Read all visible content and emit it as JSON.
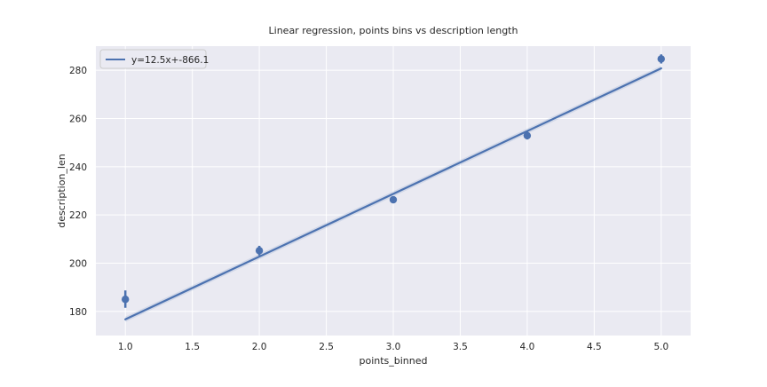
{
  "chart_data": {
    "type": "scatter",
    "title": "Linear regression, points bins vs description length",
    "xlabel": "points_binned",
    "ylabel": "description_len",
    "xlim": [
      0.78,
      5.22
    ],
    "ylim": [
      170,
      290
    ],
    "x_ticks": [
      1.0,
      1.5,
      2.0,
      2.5,
      3.0,
      3.5,
      4.0,
      4.5,
      5.0
    ],
    "x_tick_labels": [
      "1.0",
      "1.5",
      "2.0",
      "2.5",
      "3.0",
      "3.5",
      "4.0",
      "4.5",
      "5.0"
    ],
    "y_ticks": [
      180,
      200,
      220,
      240,
      260,
      280
    ],
    "y_tick_labels": [
      "180",
      "200",
      "220",
      "240",
      "260",
      "280"
    ],
    "grid": true,
    "legend": {
      "position": "top-left",
      "entries": [
        "y=12.5x+-866.1"
      ]
    },
    "colors": {
      "series": "#4C72B0",
      "background": "#EAEAF2",
      "grid": "#FFFFFF"
    },
    "series": [
      {
        "name": "y=12.5x+-866.1",
        "points": [
          {
            "x": 1.0,
            "y": 185.0,
            "err_low": 181.5,
            "err_high": 188.7
          },
          {
            "x": 2.0,
            "y": 205.2,
            "err_low": 203.2,
            "err_high": 207.2
          },
          {
            "x": 3.0,
            "y": 226.3,
            "err_low": 225.2,
            "err_high": 227.4
          },
          {
            "x": 4.0,
            "y": 252.9,
            "err_low": 251.3,
            "err_high": 254.5
          },
          {
            "x": 5.0,
            "y": 284.7,
            "err_low": 282.8,
            "err_high": 286.6
          }
        ],
        "regression_line": {
          "x": [
            1.0,
            5.0
          ],
          "y": [
            176.7,
            280.8
          ]
        }
      }
    ]
  }
}
